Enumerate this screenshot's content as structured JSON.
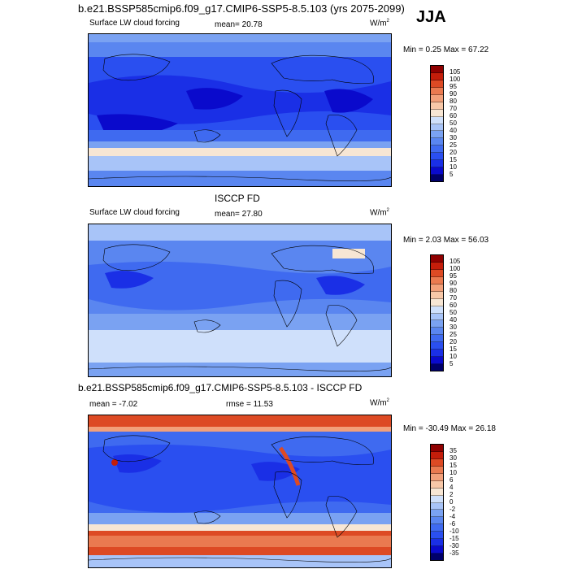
{
  "header": {
    "title": "b.e21.BSSP585cmip6.f09_g17.CMIP6-SSP5-8.5.103 (yrs 2075-2099)",
    "season": "JJA"
  },
  "panel1": {
    "variable": "Surface LW cloud forcing",
    "mean_text": "mean=  20.78",
    "units": "W/m",
    "units_sup": "2",
    "minmax": "Min =   0.25 Max =  67.22"
  },
  "panel2": {
    "heading": "ISCCP FD",
    "variable": "Surface LW cloud forcing",
    "mean_text": "mean=  27.80",
    "units": "W/m",
    "units_sup": "2",
    "minmax": "Min =   2.03 Max =  56.03"
  },
  "panel3": {
    "heading": "b.e21.BSSP585cmip6.f09_g17.CMIP6-SSP5-8.5.103 - ISCCP FD",
    "mean_text": "mean =  -7.02",
    "rmse_text": "rmse =  11.53",
    "units": "W/m",
    "units_sup": "2",
    "minmax": "Min = -30.49 Max =  26.18"
  },
  "chart_data": [
    {
      "type": "heatmap",
      "title": "b.e21.BSSP585cmip6.f09_g17.CMIP6-SSP5-8.5.103 (yrs 2075-2099)",
      "subtitle": "Surface LW cloud forcing",
      "season": "JJA",
      "mean": 20.78,
      "min": 0.25,
      "max": 67.22,
      "units": "W/m2",
      "colorbar_levels": [
        5,
        10,
        15,
        20,
        25,
        30,
        40,
        50,
        60,
        70,
        80,
        90,
        95,
        100,
        105
      ]
    },
    {
      "type": "heatmap",
      "title": "ISCCP FD",
      "subtitle": "Surface LW cloud forcing",
      "mean": 27.8,
      "min": 2.03,
      "max": 56.03,
      "units": "W/m2",
      "colorbar_levels": [
        5,
        10,
        15,
        20,
        25,
        30,
        40,
        50,
        60,
        70,
        80,
        90,
        95,
        100,
        105
      ]
    },
    {
      "type": "heatmap",
      "title": "b.e21.BSSP585cmip6.f09_g17.CMIP6-SSP5-8.5.103 - ISCCP FD",
      "mean": -7.02,
      "rmse": 11.53,
      "min": -30.49,
      "max": 26.18,
      "units": "W/m2",
      "colorbar_levels": [
        -35,
        -30,
        -15,
        -10,
        -6,
        -4,
        -2,
        0,
        2,
        4,
        6,
        10,
        15,
        30,
        35
      ]
    }
  ],
  "colors": {
    "abs_scale": [
      "#00006a",
      "#0a0acc",
      "#1a2fe6",
      "#2a4ff0",
      "#3f6af0",
      "#5a86f0",
      "#7aa2f2",
      "#a8c4f8",
      "#cfe0fb",
      "#f7e6d4",
      "#f8c8a8",
      "#f2a07a",
      "#ea7a50",
      "#dd4a24",
      "#c41d0a",
      "#8f0000"
    ],
    "diff_scale": [
      "#00006a",
      "#0a0acc",
      "#1a2fe6",
      "#2a4ff0",
      "#3f6af0",
      "#5a86f0",
      "#7aa2f2",
      "#a8c4f8",
      "#cfe0fb",
      "#f7e6d4",
      "#f8c8a8",
      "#f2a07a",
      "#ea7a50",
      "#dd4a24",
      "#c41d0a",
      "#8f0000"
    ]
  }
}
